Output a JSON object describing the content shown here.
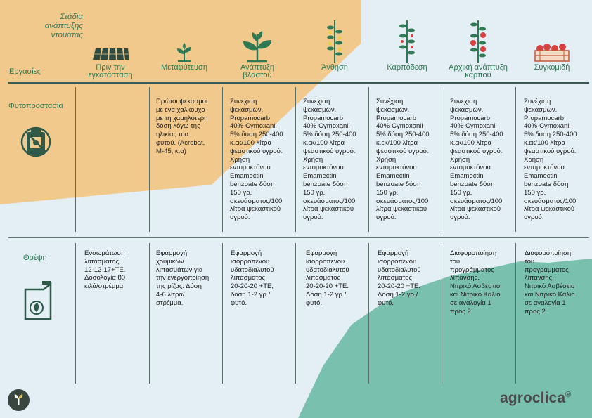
{
  "header": {
    "stages_title": "Στάδια\nανάπτυξης\nντομάτας",
    "tasks_label": "Εργασίες"
  },
  "stages": [
    {
      "label": "Πριν την\nεγκατάσταση",
      "icon": "seedling-tray-icon"
    },
    {
      "label": "Μεταφύτευση",
      "icon": "sprout-icon"
    },
    {
      "label": "Ανάπτυξη\nβλαστού",
      "icon": "young-plant-icon"
    },
    {
      "label": "Άνθηση",
      "icon": "flowering-plant-icon"
    },
    {
      "label": "Καρπόδεση",
      "icon": "fruit-set-plant-icon"
    },
    {
      "label": "Αρχική ανάπτυξη\nκαρπού",
      "icon": "fruiting-plant-icon"
    },
    {
      "label": "Συγκομιδή",
      "icon": "harvest-crate-icon"
    }
  ],
  "rows": [
    {
      "label": "Φυτοπροστασία",
      "icon": "pesticide-bottle-icon",
      "cells": [
        "",
        "Πρώτοι ψεκασμοί\nμε ένα χαλκούχο\nμε τη χαμηλότερη\nδόση λόγω της\nηλικίας του\nφυτού. (Acrobat,\nM-45, κ.α)",
        "Συνέχιση\nψεκασμών.\nPropamocarb\n40%-Cymoxanil\n5% δόση 250-400\nκ.εκ/100 λίτρα\nψεαστικού υγρού.\nΧρήση\nεντομοκτόνου\nEmamectin\nbenzoate δόση\n150 γρ.\nσκευάσματος/100\nλίτρα ψεκαστικού\nυγρού.",
        "Συνέχιση\nψεκασμών.\nPropamocarb\n40%-Cymoxanil\n5% δόση 250-400\nκ.εκ/100 λίτρα\nψεαστικού υγρού.\nΧρήση\nεντομοκτόνου\nEmamectin\nbenzoate δόση\n150 γρ.\nσκευάσματος/100\nλίτρα ψεκαστικού\nυγρού.",
        "Συνέχιση\nψεκασμών.\nPropamocarb\n40%-Cymoxanil\n5% δόση 250-400\nκ.εκ/100 λίτρα\nψεαστικού υγρού.\nΧρήση\nεντομοκτόνου\nEmamectin\nbenzoate δόση\n150 γρ.\nσκευάσματος/100\nλίτρα ψεκαστικού\nυγρού.",
        "Συνέχιση\nψεκασμών.\nPropamocarb\n40%-Cymoxanil\n5% δόση 250-400\nκ.εκ/100 λίτρα\nψεαστικού υγρού.\nΧρήση\nεντομοκτόνου\nEmamectin\nbenzoate δόση\n150 γρ.\nσκευάσματος/100\nλίτρα ψεκαστικού\nυγρού.",
        "Συνέχιση\nψεκασμών.\nPropamocarb\n40%-Cymoxanil\n5% δόση 250-400\nκ.εκ/100 λίτρα\nψεαστικού υγρού.\nΧρήση\nεντομοκτόνου\nEmamectin\nbenzoate δόση\n150 γρ.\nσκευάσματος/100\nλίτρα ψεκαστικού\nυγρού."
      ]
    },
    {
      "label": "Θρέψη",
      "icon": "fertilizer-can-icon",
      "cells": [
        "Ενσωμάτωση\nλιπάσματος\n12-12-17+ΤΕ.\nΔοσολογία 80\nκιλά/στρέμμα",
        "Εφαρμογή\nχουμικών\nλιπασμάτων για\nτην ενεργοποίηση\nτης ρίζας. Δόση\n4-6 λίτρα/\nστρέμμα.",
        "Εφαρμογή\nισορροπένου\nυδατοδιαλυτού\nλιπάσματος\n20-20-20 +ΤΕ,\nδόση 1-2 γρ./\nφυτό.",
        "Εφαρμογή\nισορροπένου\nυδατοδιαλυτού\nλιπάσματος\n20-20-20 +ΤΕ.\nΔόση 1-2 γρ./\nφυτό.",
        "Εφαρμογή\nισορροπένου\nυδατοδιαλυτού\nλιπάσματος\n20-20-20 +ΤΕ.\nΔόση 1-2 γρ./\nφυτό.",
        "Διαφοροποίηση\nτου\nπρογράμματος\nλίπανσης.\nΝιτρικό Ασβέστιο\nκαι Νιτρικό Κάλιο\nσε αναλογία 1\nπρος 2.",
        "Διαφοροποίηση\nτου\nπρογράμματος\nλίπανσης.\nΝιτρικό Ασβέστιο\nκαι Νιτρικό Κάλιο\nσε αναλογία 1\nπρος 2."
      ]
    }
  ],
  "brand": {
    "name": "agroclica",
    "mark": "®"
  },
  "colors": {
    "sand": "#f2c98c",
    "teal": "#7ac0ae",
    "bg": "#e4eef5",
    "green": "#2f7a55",
    "tomato": "#d94040"
  }
}
